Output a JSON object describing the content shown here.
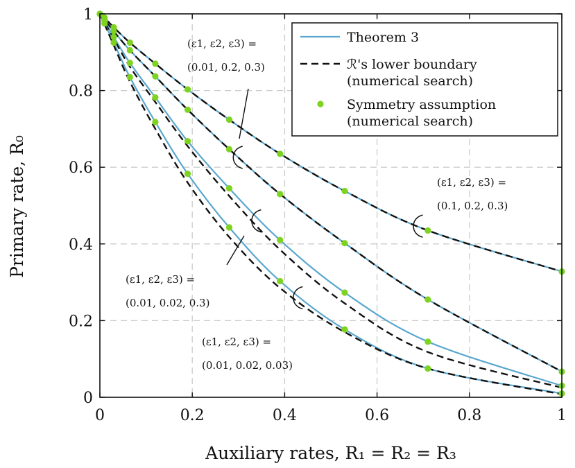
{
  "chart_data": {
    "type": "line",
    "xlabel": "Auxiliary rates, R₁ = R₂ = R₃",
    "ylabel": "Primary rate, R₀",
    "xlim": [
      0,
      1
    ],
    "ylim": [
      0,
      1
    ],
    "xticks": [
      "0",
      "0.2",
      "0.4",
      "0.6",
      "0.8",
      "1"
    ],
    "yticks": [
      "0",
      "0.2",
      "0.4",
      "0.6",
      "0.8",
      "1"
    ],
    "grid": true,
    "legend": {
      "position": "top-right",
      "entries": [
        {
          "lines": [
            "Theorem 3"
          ],
          "style": "solid",
          "color": "#5aa7cf"
        },
        {
          "lines": [
            "ℛ's lower boundary",
            "(numerical search)"
          ],
          "style": "dashed",
          "color": "#111111"
        },
        {
          "lines": [
            "Symmetry assumption",
            "(numerical search)"
          ],
          "style": "marker",
          "color": "#7ed321"
        }
      ]
    },
    "marker_x": [
      0,
      0.01,
      0.03,
      0.065,
      0.12,
      0.19,
      0.28,
      0.39,
      0.53,
      0.71,
      1.0
    ],
    "series": [
      {
        "name": "(ε1, ε2, ε3) = (0.1, 0.2, 0.3)",
        "theorem": [
          [
            0,
            1.0
          ],
          [
            0.01,
            0.99
          ],
          [
            0.03,
            0.965
          ],
          [
            0.065,
            0.925
          ],
          [
            0.12,
            0.87
          ],
          [
            0.19,
            0.803
          ],
          [
            0.28,
            0.724
          ],
          [
            0.39,
            0.635
          ],
          [
            0.53,
            0.538
          ],
          [
            0.71,
            0.435
          ],
          [
            1.0,
            0.328
          ]
        ],
        "boundary": [
          [
            0,
            1.0
          ],
          [
            0.01,
            0.99
          ],
          [
            0.03,
            0.965
          ],
          [
            0.065,
            0.925
          ],
          [
            0.12,
            0.87
          ],
          [
            0.19,
            0.803
          ],
          [
            0.28,
            0.724
          ],
          [
            0.39,
            0.635
          ],
          [
            0.53,
            0.538
          ],
          [
            0.71,
            0.435
          ],
          [
            1.0,
            0.328
          ]
        ],
        "markers": [
          1.0,
          0.99,
          0.965,
          0.925,
          0.87,
          0.803,
          0.724,
          0.635,
          0.538,
          0.435,
          0.328
        ]
      },
      {
        "name": "(ε1, ε2, ε3) = (0.01, 0.2, 0.3)",
        "theorem": [
          [
            0,
            1.0
          ],
          [
            0.01,
            0.985
          ],
          [
            0.03,
            0.955
          ],
          [
            0.065,
            0.905
          ],
          [
            0.12,
            0.837
          ],
          [
            0.19,
            0.75
          ],
          [
            0.28,
            0.647
          ],
          [
            0.39,
            0.53
          ],
          [
            0.53,
            0.402
          ],
          [
            0.71,
            0.255
          ],
          [
            1.0,
            0.067
          ]
        ],
        "boundary": [
          [
            0,
            1.0
          ],
          [
            0.01,
            0.985
          ],
          [
            0.03,
            0.955
          ],
          [
            0.065,
            0.905
          ],
          [
            0.12,
            0.837
          ],
          [
            0.19,
            0.75
          ],
          [
            0.28,
            0.647
          ],
          [
            0.39,
            0.53
          ],
          [
            0.53,
            0.402
          ],
          [
            0.71,
            0.255
          ],
          [
            1.0,
            0.067
          ]
        ],
        "markers": [
          1.0,
          0.985,
          0.955,
          0.905,
          0.837,
          0.75,
          0.647,
          0.53,
          0.402,
          0.255,
          0.067
        ]
      },
      {
        "name": "(ε1, ε2, ε3) = (0.01, 0.02, 0.3)",
        "theorem": [
          [
            0,
            1.0
          ],
          [
            0.01,
            0.982
          ],
          [
            0.03,
            0.94
          ],
          [
            0.065,
            0.872
          ],
          [
            0.12,
            0.782
          ],
          [
            0.19,
            0.668
          ],
          [
            0.28,
            0.545
          ],
          [
            0.39,
            0.41
          ],
          [
            0.53,
            0.273
          ],
          [
            0.71,
            0.145
          ],
          [
            1.0,
            0.03
          ]
        ],
        "boundary": [
          [
            0,
            1.0
          ],
          [
            0.01,
            0.978
          ],
          [
            0.03,
            0.935
          ],
          [
            0.065,
            0.862
          ],
          [
            0.12,
            0.77
          ],
          [
            0.19,
            0.655
          ],
          [
            0.28,
            0.525
          ],
          [
            0.39,
            0.385
          ],
          [
            0.53,
            0.245
          ],
          [
            0.71,
            0.118
          ],
          [
            1.0,
            0.025
          ]
        ],
        "markers": [
          1.0,
          0.982,
          0.94,
          0.872,
          0.782,
          0.668,
          0.545,
          0.41,
          0.273,
          0.145,
          0.03
        ]
      },
      {
        "name": "(ε1, ε2, ε3) = (0.01, 0.02, 0.03)",
        "theorem": [
          [
            0,
            1.0
          ],
          [
            0.01,
            0.975
          ],
          [
            0.03,
            0.925
          ],
          [
            0.065,
            0.835
          ],
          [
            0.12,
            0.718
          ],
          [
            0.19,
            0.583
          ],
          [
            0.28,
            0.443
          ],
          [
            0.39,
            0.303
          ],
          [
            0.53,
            0.177
          ],
          [
            0.71,
            0.075
          ],
          [
            1.0,
            0.01
          ]
        ],
        "boundary": [
          [
            0,
            1.0
          ],
          [
            0.01,
            0.973
          ],
          [
            0.03,
            0.918
          ],
          [
            0.065,
            0.823
          ],
          [
            0.12,
            0.7
          ],
          [
            0.19,
            0.56
          ],
          [
            0.28,
            0.418
          ],
          [
            0.39,
            0.285
          ],
          [
            0.53,
            0.17
          ],
          [
            0.71,
            0.075
          ],
          [
            1.0,
            0.008
          ]
        ],
        "markers": [
          1.0,
          0.975,
          0.925,
          0.835,
          0.718,
          0.583,
          0.443,
          0.303,
          0.177,
          0.075,
          0.01
        ]
      }
    ],
    "annotations": [
      {
        "lines": [
          "(ε1, ε2, ε3) =",
          "(0.01, 0.2, 0.3)"
        ],
        "series": 1
      },
      {
        "lines": [
          "(ε1, ε2, ε3) =",
          "(0.1, 0.2, 0.3)"
        ],
        "series": 0
      },
      {
        "lines": [
          "(ε1, ε2, ε3) =",
          "(0.01, 0.02, 0.3)"
        ],
        "series": 2
      },
      {
        "lines": [
          "(ε1, ε2, ε3) =",
          "(0.01, 0.02, 0.03)"
        ],
        "series": 3
      }
    ],
    "colors": {
      "theorem": "#5aa7cf",
      "boundary": "#111111",
      "marker": "#7ed321",
      "grid": "#cccccc"
    }
  }
}
